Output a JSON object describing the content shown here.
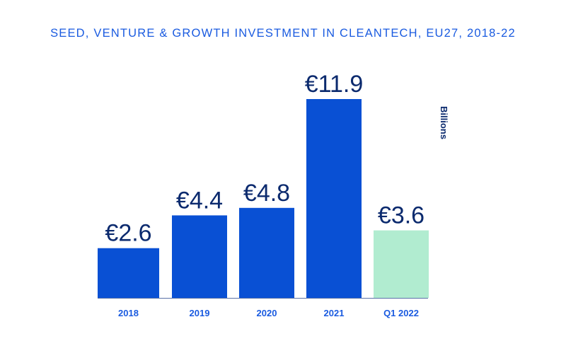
{
  "chart_data": {
    "type": "bar",
    "title": "SEED, VENTURE & GROWTH INVESTMENT IN CLEANTECH, EU27, 2018-22",
    "ylabel": "Billions",
    "xlabel": "",
    "categories": [
      "2018",
      "2019",
      "2020",
      "2021",
      "Q1 2022"
    ],
    "values": [
      2.6,
      4.4,
      4.8,
      11.9,
      3.6
    ],
    "data_labels": [
      "€2.6",
      "€4.4",
      "€4.8",
      "€11.9",
      "€3.6"
    ],
    "bar_colors": [
      "#0950d4",
      "#0950d4",
      "#0950d4",
      "#0950d4",
      "#b1ecd0"
    ],
    "label_color": "#0b2a6e",
    "tick_color": "#1a5be0",
    "ylim": [
      0,
      11.9
    ],
    "grid": false,
    "legend": "none"
  }
}
